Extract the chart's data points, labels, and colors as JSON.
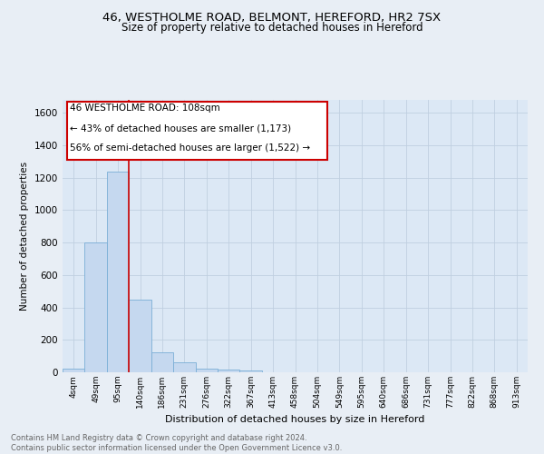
{
  "title_line1": "46, WESTHOLME ROAD, BELMONT, HEREFORD, HR2 7SX",
  "title_line2": "Size of property relative to detached houses in Hereford",
  "xlabel": "Distribution of detached houses by size in Hereford",
  "ylabel": "Number of detached properties",
  "bar_labels": [
    "4sqm",
    "49sqm",
    "95sqm",
    "140sqm",
    "186sqm",
    "231sqm",
    "276sqm",
    "322sqm",
    "367sqm",
    "413sqm",
    "458sqm",
    "504sqm",
    "549sqm",
    "595sqm",
    "640sqm",
    "686sqm",
    "731sqm",
    "777sqm",
    "822sqm",
    "868sqm",
    "913sqm"
  ],
  "bar_values": [
    25,
    800,
    1240,
    450,
    125,
    60,
    25,
    18,
    13,
    0,
    0,
    0,
    0,
    0,
    0,
    0,
    0,
    0,
    0,
    0,
    0
  ],
  "bar_color": "#c5d8ef",
  "bar_edge_color": "#7aaed6",
  "ylim": [
    0,
    1680
  ],
  "yticks": [
    0,
    200,
    400,
    600,
    800,
    1000,
    1200,
    1400,
    1600
  ],
  "vline_x": 2.5,
  "vline_color": "#cc0000",
  "annotation_line1": "46 WESTHOLME ROAD: 108sqm",
  "annotation_line2": "← 43% of detached houses are smaller (1,173)",
  "annotation_line3": "56% of semi-detached houses are larger (1,522) →",
  "annotation_box_color": "#ffffff",
  "annotation_box_edge": "#cc0000",
  "footnote": "Contains HM Land Registry data © Crown copyright and database right 2024.\nContains public sector information licensed under the Open Government Licence v3.0.",
  "bg_color": "#e8eef5",
  "plot_bg_color": "#dce8f5",
  "grid_color": "#c0cfe0"
}
